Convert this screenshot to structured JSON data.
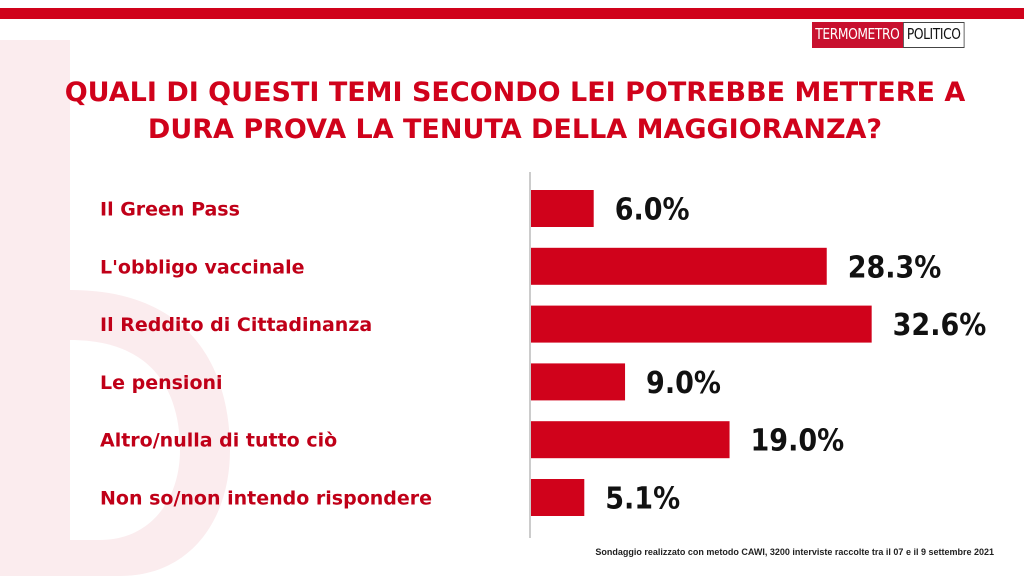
{
  "logo": {
    "part1": "TERMOMETRO",
    "part2": "POLITICO"
  },
  "colors": {
    "accent": "#d0021b",
    "bar": "#d0021b",
    "label": "#c00018",
    "value": "#111111"
  },
  "chart_data": {
    "type": "bar",
    "orientation": "horizontal",
    "title": "QUALI DI QUESTI TEMI SECONDO LEI POTREBBE METTERE A DURA PROVA LA TENUTA DELLA MAGGIORANZA?",
    "categories": [
      "Il Green Pass",
      "L'obbligo vaccinale",
      "Il Reddito di Cittadinanza",
      "Le pensioni",
      "Altro/nulla di tutto ciò",
      "Non so/non intendo rispondere"
    ],
    "values": [
      6.0,
      28.3,
      32.6,
      9.0,
      19.0,
      5.1
    ],
    "value_labels": [
      "6.0%",
      "28.3%",
      "32.6%",
      "9.0%",
      "19.0%",
      "5.1%"
    ],
    "unit": "%",
    "grid": false,
    "legend": "none"
  },
  "footnote": "Sondaggio realizzato con metodo CAWI, 3200 interviste raccolte tra il 07 e il 9 settembre 2021"
}
